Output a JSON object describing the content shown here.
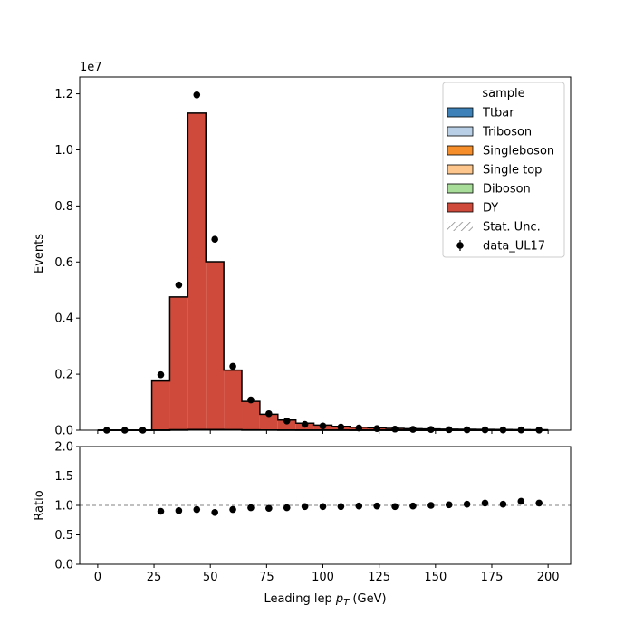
{
  "chart_data": [
    {
      "type": "bar",
      "stacked": true,
      "histtype": "step-fill",
      "bin_edges": [
        0,
        8,
        16,
        24,
        32,
        40,
        48,
        56,
        64,
        72,
        80,
        88,
        96,
        104,
        112,
        120,
        128,
        136,
        144,
        152,
        160,
        168,
        176,
        184,
        192,
        200
      ],
      "series": [
        {
          "name": "Ttbar",
          "color": "#3d81b8",
          "values": [
            0,
            0,
            0,
            2000,
            5000,
            9000,
            9000,
            7000,
            6000,
            5000,
            4000,
            3500,
            3000,
            2500,
            2000,
            1800,
            1500,
            1200,
            1000,
            900,
            800,
            700,
            600,
            500,
            400
          ]
        },
        {
          "name": "Triboson",
          "color": "#b9cfe6",
          "values": [
            0,
            0,
            0,
            0,
            0,
            0,
            0,
            0,
            0,
            0,
            0,
            0,
            0,
            0,
            0,
            0,
            0,
            0,
            0,
            0,
            0,
            0,
            0,
            0,
            0
          ]
        },
        {
          "name": "Singleboson",
          "color": "#f68e2c",
          "values": [
            0,
            0,
            0,
            3000,
            6000,
            8000,
            6000,
            4000,
            2500,
            1800,
            1200,
            900,
            700,
            600,
            500,
            400,
            300,
            250,
            200,
            150,
            120,
            100,
            80,
            70,
            60
          ]
        },
        {
          "name": "Single top",
          "color": "#fdc68d",
          "values": [
            0,
            0,
            0,
            500,
            1200,
            2000,
            2000,
            1500,
            1200,
            900,
            700,
            600,
            500,
            400,
            300,
            250,
            200,
            180,
            150,
            120,
            100,
            90,
            80,
            70,
            60
          ]
        },
        {
          "name": "Diboson",
          "color": "#a7dd98",
          "values": [
            0,
            0,
            0,
            500,
            1500,
            3000,
            2500,
            2000,
            1500,
            1200,
            900,
            700,
            600,
            500,
            400,
            300,
            250,
            200,
            180,
            150,
            120,
            100,
            90,
            80,
            70
          ]
        },
        {
          "name": "DY",
          "color": "#cf4a3a",
          "values": [
            0,
            0,
            0,
            1750000,
            4740000,
            11290000,
            5990000,
            2130000,
            1020000,
            560000,
            355000,
            246000,
            175000,
            133000,
            103000,
            81000,
            64000,
            52000,
            43000,
            36000,
            31000,
            26000,
            23000,
            20000,
            17000
          ]
        }
      ],
      "data": {
        "name": "data_UL17",
        "x": [
          4,
          12,
          20,
          28,
          36,
          44,
          52,
          60,
          68,
          76,
          84,
          92,
          100,
          108,
          116,
          124,
          132,
          140,
          148,
          156,
          164,
          172,
          180,
          188,
          196
        ],
        "y": [
          0,
          0,
          0,
          1980000,
          5180000,
          11960000,
          6810000,
          2280000,
          1080000,
          590000,
          330000,
          210000,
          150000,
          110000,
          80000,
          60000,
          40000,
          30000,
          25000,
          20000,
          16000,
          13000,
          11000,
          9000,
          7000
        ]
      },
      "xlim": [
        -8,
        210
      ],
      "ylim": [
        0,
        12600000
      ],
      "yticks": [
        0,
        2000000,
        4000000,
        6000000,
        8000000,
        10000000,
        12000000
      ],
      "ytick_labels": [
        "0.0",
        "0.2",
        "0.4",
        "0.6",
        "0.8",
        "1.0",
        "1.2"
      ],
      "offset_text": "1e7",
      "ylabel": "Events",
      "legend_title": "sample",
      "legend_unc_label": "Stat. Unc.",
      "legend_placement": "upper right",
      "edge_color": "#000000"
    },
    {
      "type": "scatter",
      "x": [
        28,
        36,
        44,
        52,
        60,
        68,
        76,
        84,
        92,
        100,
        108,
        116,
        124,
        132,
        140,
        148,
        156,
        164,
        172,
        180,
        188,
        196
      ],
      "y": [
        0.9,
        0.91,
        0.93,
        0.88,
        0.93,
        0.96,
        0.95,
        0.96,
        0.98,
        0.98,
        0.98,
        0.99,
        0.99,
        0.98,
        0.99,
        1.0,
        1.01,
        1.02,
        1.04,
        1.02,
        1.07,
        1.04
      ],
      "reference_line": 1.0,
      "xlim": [
        -8,
        210
      ],
      "ylim": [
        0,
        2
      ],
      "xticks": [
        0,
        25,
        50,
        75,
        100,
        125,
        150,
        175,
        200
      ],
      "xtick_labels": [
        "0",
        "25",
        "50",
        "75",
        "100",
        "125",
        "150",
        "175",
        "200"
      ],
      "yticks": [
        0,
        0.5,
        1.0,
        1.5,
        2.0
      ],
      "ytick_labels": [
        "0.0",
        "0.5",
        "1.0",
        "1.5",
        "2.0"
      ],
      "ylabel": "Ratio",
      "xlabel_main": "Leading lep ",
      "xlabel_var": "p",
      "xlabel_sub": "T",
      "xlabel_unit": " (GeV)"
    }
  ]
}
